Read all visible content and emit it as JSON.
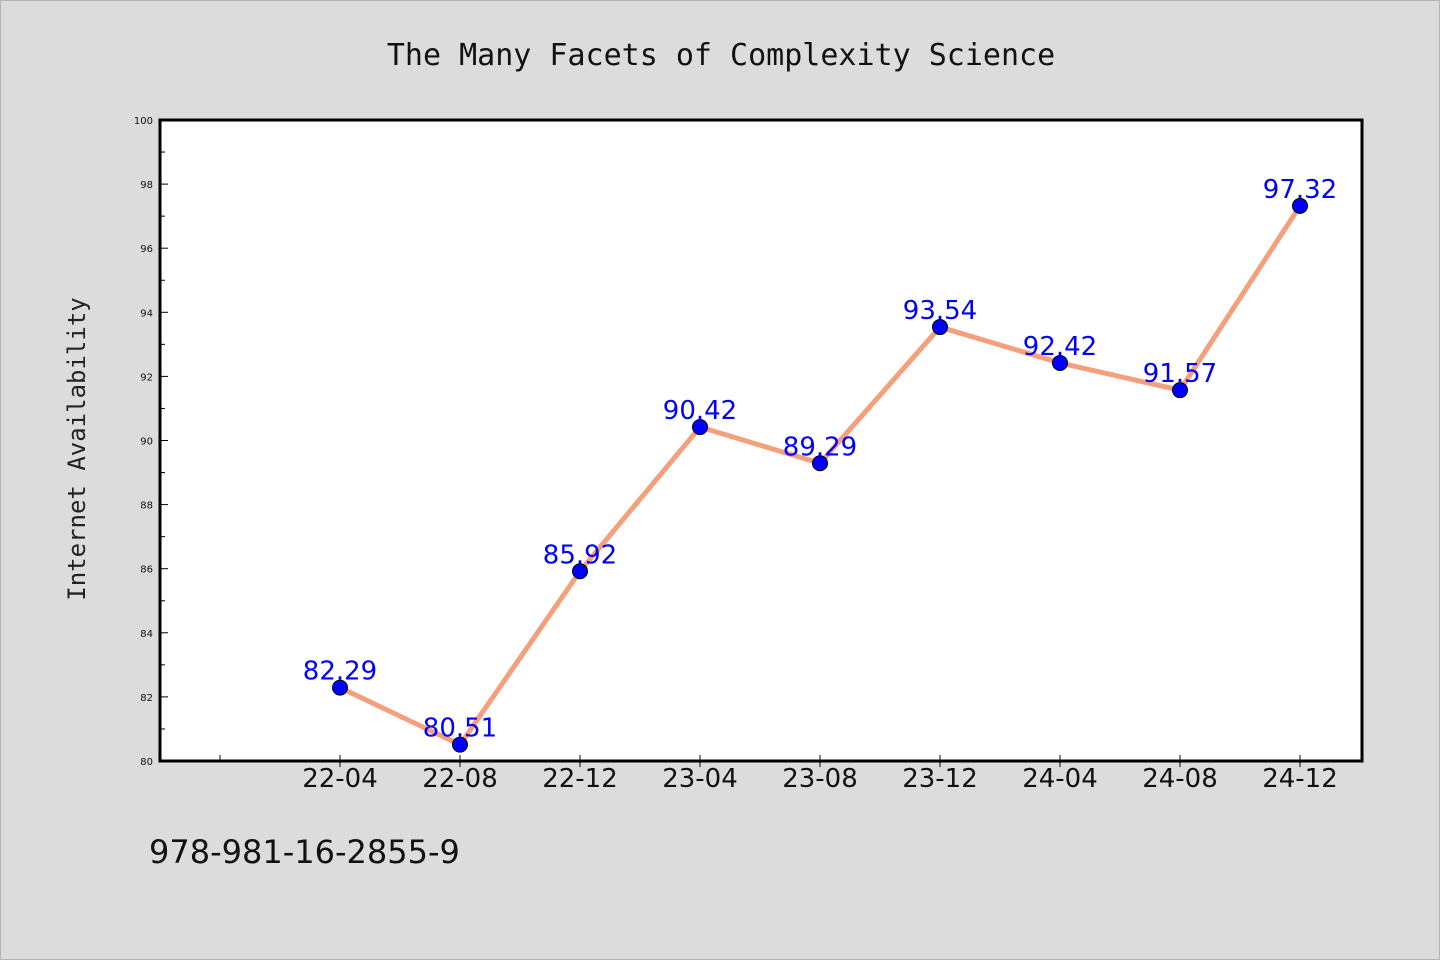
{
  "chart_data": {
    "type": "line",
    "title": "The Many Facets of Complexity Science",
    "xlabel": "",
    "ylabel": "Internet Availability",
    "categories": [
      "22-04",
      "22-08",
      "22-12",
      "23-04",
      "23-08",
      "23-12",
      "24-04",
      "24-08",
      "24-12"
    ],
    "series": [
      {
        "values": [
          82.29,
          80.51,
          85.92,
          90.42,
          89.29,
          93.54,
          92.42,
          91.57,
          97.32
        ],
        "data_labels": [
          "82.29",
          "80.51",
          "85.92",
          "90.42",
          "89.29",
          "93.54",
          "92.42",
          "91.57",
          "97.32"
        ]
      }
    ],
    "ylim": [
      80,
      100
    ],
    "yticks": [
      "80",
      "82",
      "84",
      "86",
      "88",
      "90",
      "92",
      "94",
      "96",
      "98",
      "100"
    ],
    "grid": false,
    "legend": "none",
    "colors": {
      "line": "#f4a07c",
      "marker": "#0000ff",
      "data_label": "#0000ff",
      "plot_background": "#ffffff",
      "page_background": "#dcdcdc"
    }
  },
  "footer": {
    "code": "978-981-16-2855-9"
  }
}
